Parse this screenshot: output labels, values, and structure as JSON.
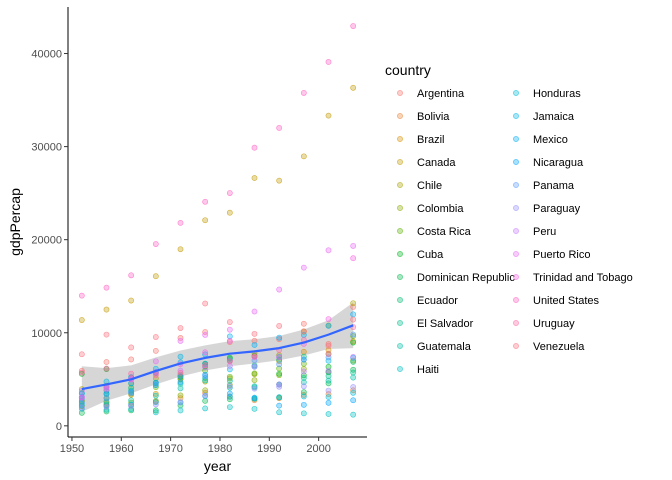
{
  "chart_data": {
    "type": "scatter",
    "xlabel": "year",
    "ylabel": "gdpPercap",
    "xlim": [
      1949.2,
      2009.8
    ],
    "ylim": [
      -1200,
      45000
    ],
    "xticks": [
      1950,
      1960,
      1970,
      1980,
      1990,
      2000
    ],
    "yticks": [
      0,
      10000,
      20000,
      30000,
      40000
    ],
    "grid": false,
    "legend": {
      "title": "country",
      "placement": "right",
      "columns": 2
    },
    "years": [
      1952,
      1957,
      1962,
      1967,
      1972,
      1977,
      1982,
      1987,
      1992,
      1997,
      2002,
      2007
    ],
    "series": [
      {
        "name": "Argentina",
        "color": "#F8766D",
        "values": [
          5911,
          6857,
          7133,
          8053,
          9443,
          10079,
          8998,
          9140,
          9308,
          10968,
          8798,
          12779
        ]
      },
      {
        "name": "Bolivia",
        "color": "#EB8335",
        "values": [
          2677,
          2128,
          2181,
          2587,
          2980,
          3548,
          3157,
          2754,
          2962,
          3326,
          3413,
          3822
        ]
      },
      {
        "name": "Brazil",
        "color": "#DA8F00",
        "values": [
          2109,
          2487,
          3337,
          3430,
          4986,
          6660,
          7031,
          7807,
          6950,
          7958,
          8131,
          9066
        ]
      },
      {
        "name": "Canada",
        "color": "#C49A00",
        "values": [
          11367,
          12490,
          13462,
          16077,
          18971,
          22091,
          22899,
          26627,
          26343,
          28955,
          33329,
          36319
        ]
      },
      {
        "name": "Chile",
        "color": "#AAA300",
        "values": [
          3940,
          4316,
          4519,
          5107,
          5494,
          4757,
          5096,
          5547,
          7596,
          10118,
          10779,
          13172
        ]
      },
      {
        "name": "Colombia",
        "color": "#8AAB00",
        "values": [
          2144,
          2324,
          2492,
          2679,
          3265,
          3816,
          4398,
          4903,
          5445,
          6118,
          5755,
          7007
        ]
      },
      {
        "name": "Costa Rica",
        "color": "#5BB300",
        "values": [
          2627,
          2991,
          3460,
          4161,
          5118,
          5926,
          5263,
          5630,
          6160,
          6677,
          7723,
          9645
        ]
      },
      {
        "name": "Cuba",
        "color": "#00B81F",
        "values": [
          5587,
          6092,
          5181,
          5690,
          5305,
          6380,
          7317,
          7533,
          5593,
          5432,
          6341,
          8948
        ]
      },
      {
        "name": "Dominican Republic",
        "color": "#00BB4E",
        "values": [
          1398,
          1544,
          1662,
          1654,
          2190,
          2681,
          2862,
          2900,
          3045,
          3614,
          4564,
          6025
        ]
      },
      {
        "name": "Ecuador",
        "color": "#00BE70",
        "values": [
          3522,
          3780,
          4086,
          4580,
          5281,
          6680,
          7213,
          6482,
          7104,
          7430,
          5773,
          6873
        ]
      },
      {
        "name": "El Salvador",
        "color": "#00C08E",
        "values": [
          3048,
          3421,
          3777,
          4359,
          4520,
          5138,
          4099,
          4140,
          4444,
          5154,
          5351,
          5728
        ]
      },
      {
        "name": "Guatemala",
        "color": "#00C1A9",
        "values": [
          2428,
          2617,
          2750,
          3243,
          4031,
          4880,
          4820,
          4247,
          4439,
          4684,
          4858,
          5186
        ]
      },
      {
        "name": "Haiti",
        "color": "#00BFC4",
        "values": [
          1840,
          1727,
          1797,
          1452,
          1654,
          1874,
          2012,
          1823,
          1456,
          1342,
          1270,
          1202
        ]
      },
      {
        "name": "Honduras",
        "color": "#00BCD8",
        "values": [
          2195,
          2221,
          2292,
          2538,
          2529,
          3203,
          3121,
          3023,
          3082,
          3160,
          3099,
          3548
        ]
      },
      {
        "name": "Jamaica",
        "color": "#00B7E8",
        "values": [
          2899,
          4756,
          5246,
          6125,
          7434,
          6650,
          6068,
          6351,
          7405,
          7122,
          6995,
          7321
        ]
      },
      {
        "name": "Mexico",
        "color": "#00AFF6",
        "values": [
          3478,
          4132,
          4582,
          5755,
          6809,
          7675,
          9611,
          8688,
          9472,
          9767,
          10742,
          11978
        ]
      },
      {
        "name": "Nicaragua",
        "color": "#00A5FF",
        "values": [
          3112,
          3457,
          3634,
          4643,
          4688,
          5486,
          3470,
          2956,
          2171,
          2253,
          2475,
          2749
        ]
      },
      {
        "name": "Panama",
        "color": "#5A9BFF",
        "values": [
          2480,
          2961,
          3536,
          4421,
          5364,
          5352,
          7009,
          7034,
          6619,
          7114,
          7357,
          9809
        ]
      },
      {
        "name": "Paraguay",
        "color": "#9590FF",
        "values": [
          1952,
          2046,
          2149,
          2299,
          2524,
          3248,
          4258,
          3999,
          4197,
          4248,
          3784,
          4173
        ]
      },
      {
        "name": "Peru",
        "color": "#C77CFF",
        "values": [
          3759,
          4245,
          4957,
          5788,
          5938,
          6281,
          6435,
          6361,
          4446,
          5838,
          5909,
          7409
        ]
      },
      {
        "name": "Puerto Rico",
        "color": "#E76BF3",
        "values": [
          3082,
          3908,
          5108,
          6929,
          9123,
          9771,
          10331,
          12281,
          14642,
          16999,
          18856,
          19329
        ]
      },
      {
        "name": "Trinidad and Tobago",
        "color": "#F564E3",
        "values": [
          3023,
          4101,
          4998,
          5621,
          6620,
          7899,
          9119,
          7388,
          7371,
          8792,
          11461,
          18009
        ]
      },
      {
        "name": "United States",
        "color": "#FF61C3",
        "values": [
          13990,
          14847,
          16173,
          19530,
          21806,
          24073,
          25010,
          29884,
          32004,
          35767,
          39097,
          42952
        ]
      },
      {
        "name": "Uruguay",
        "color": "#FF67A4",
        "values": [
          5717,
          6151,
          5603,
          5445,
          5703,
          6504,
          6920,
          7452,
          8137,
          9230,
          7727,
          10611
        ]
      },
      {
        "name": "Venezuela",
        "color": "#FC717F",
        "values": [
          7690,
          9803,
          8423,
          9541,
          10506,
          13144,
          11152,
          9884,
          10734,
          10165,
          8606,
          11416
        ]
      }
    ],
    "smooth": {
      "color": "#3366FF",
      "band_color": "#999999",
      "x": [
        1952,
        1957,
        1962,
        1967,
        1972,
        1977,
        1982,
        1987,
        1992,
        1997,
        2002,
        2007
      ],
      "fit": [
        3950,
        4450,
        5000,
        5900,
        6700,
        7300,
        7750,
        8000,
        8350,
        8950,
        9800,
        10800
      ],
      "lower": [
        1500,
        2700,
        3500,
        4450,
        5300,
        5950,
        6400,
        6700,
        7050,
        7550,
        8250,
        8350
      ],
      "upper": [
        6400,
        6200,
        6500,
        7350,
        8100,
        8650,
        9100,
        9300,
        9650,
        10350,
        11350,
        13250
      ]
    }
  }
}
